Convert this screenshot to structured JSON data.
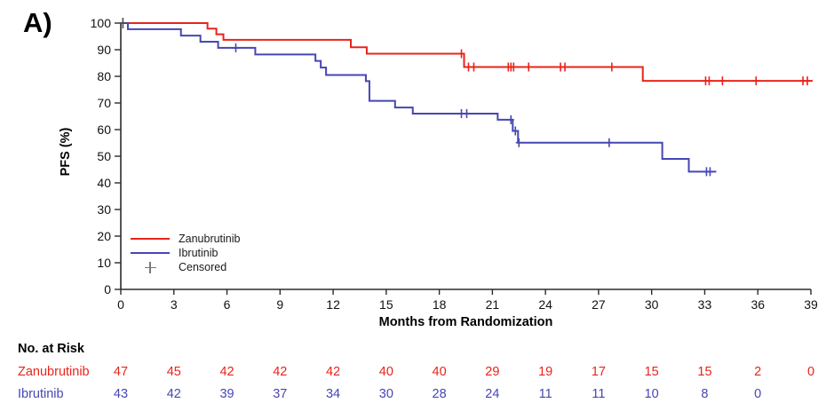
{
  "panel_label": "A)",
  "chart": {
    "y_axis": {
      "label": "PFS (%)",
      "ticks": [
        100,
        90,
        80,
        70,
        60,
        50,
        40,
        30,
        20,
        10,
        0
      ],
      "min": 0,
      "max": 100
    },
    "x_axis": {
      "label": "Months from Randomization",
      "ticks": [
        0,
        3,
        6,
        9,
        12,
        15,
        18,
        21,
        24,
        27,
        30,
        33,
        36,
        39
      ],
      "min": 0,
      "max": 39
    }
  },
  "legend": {
    "items": [
      {
        "label": "Zanubrutinib",
        "type": "line",
        "color": "#e8241b"
      },
      {
        "label": "Ibrutinib",
        "type": "line",
        "color": "#4646b4"
      },
      {
        "label": "Censored",
        "type": "plus",
        "color": "#787878"
      }
    ]
  },
  "chart_data": {
    "type": "line",
    "subtype": "kaplan-meier-step",
    "title": "",
    "xlabel": "Months from Randomization",
    "ylabel": "PFS (%)",
    "xlim": [
      0,
      39
    ],
    "ylim": [
      0,
      100
    ],
    "grid": false,
    "legend_position": "lower-left",
    "series": [
      {
        "name": "Zanubrutinib",
        "color": "#e8241b",
        "end_month": 39.1,
        "steps": [
          [
            0,
            100
          ],
          [
            4.9,
            97.9
          ],
          [
            5.4,
            95.8
          ],
          [
            5.8,
            93.7
          ],
          [
            13.0,
            90.9
          ],
          [
            13.9,
            88.5
          ],
          [
            19.4,
            83.5
          ],
          [
            29.5,
            78.3
          ]
        ],
        "censors": [
          [
            19.25,
            88.5
          ],
          [
            19.65,
            83.5
          ],
          [
            19.95,
            83.5
          ],
          [
            21.9,
            83.5
          ],
          [
            22.05,
            83.5
          ],
          [
            22.2,
            83.5
          ],
          [
            23.05,
            83.5
          ],
          [
            24.85,
            83.5
          ],
          [
            25.1,
            83.5
          ],
          [
            27.75,
            83.5
          ],
          [
            33.05,
            78.3
          ],
          [
            33.25,
            78.3
          ],
          [
            34.0,
            78.3
          ],
          [
            35.9,
            78.3
          ],
          [
            38.55,
            78.3
          ],
          [
            38.8,
            78.3
          ]
        ]
      },
      {
        "name": "Ibrutinib",
        "color": "#4646b4",
        "end_month": 33.65,
        "steps": [
          [
            0,
            100
          ],
          [
            0.4,
            97.7
          ],
          [
            3.4,
            95.3
          ],
          [
            4.5,
            93.0
          ],
          [
            5.5,
            90.7
          ],
          [
            7.6,
            88.2
          ],
          [
            11.0,
            85.8
          ],
          [
            11.3,
            83.3
          ],
          [
            11.6,
            80.5
          ],
          [
            13.85,
            78.2
          ],
          [
            14.05,
            70.8
          ],
          [
            15.5,
            68.3
          ],
          [
            16.5,
            66.0
          ],
          [
            21.3,
            63.7
          ],
          [
            22.15,
            59.5
          ],
          [
            22.45,
            55.1
          ],
          [
            30.6,
            49.0
          ],
          [
            32.1,
            44.2
          ]
        ],
        "censors": [
          [
            6.5,
            90.7
          ],
          [
            19.25,
            66.0
          ],
          [
            19.55,
            66.0
          ],
          [
            22.05,
            63.7
          ],
          [
            22.3,
            59.5
          ],
          [
            22.5,
            55.1
          ],
          [
            27.6,
            55.1
          ],
          [
            33.1,
            44.2
          ],
          [
            33.3,
            44.2
          ]
        ]
      }
    ],
    "origin_marker": {
      "month": 0.12,
      "pct": 100,
      "color": "#4d4d4d"
    }
  },
  "risk_table": {
    "title": "No. at Risk",
    "months": [
      0,
      3,
      6,
      9,
      12,
      15,
      18,
      21,
      24,
      27,
      30,
      33,
      36,
      39
    ],
    "rows": [
      {
        "label": "Zanubrutinib",
        "color": "#e8241b",
        "values": [
          "47",
          "45",
          "42",
          "42",
          "42",
          "40",
          "40",
          "29",
          "19",
          "17",
          "15",
          "15",
          "2",
          "0"
        ]
      },
      {
        "label": "Ibrutinib",
        "color": "#4646b4",
        "values": [
          "43",
          "42",
          "39",
          "37",
          "34",
          "30",
          "28",
          "24",
          "11",
          "11",
          "10",
          "8",
          "0",
          ""
        ]
      }
    ]
  }
}
